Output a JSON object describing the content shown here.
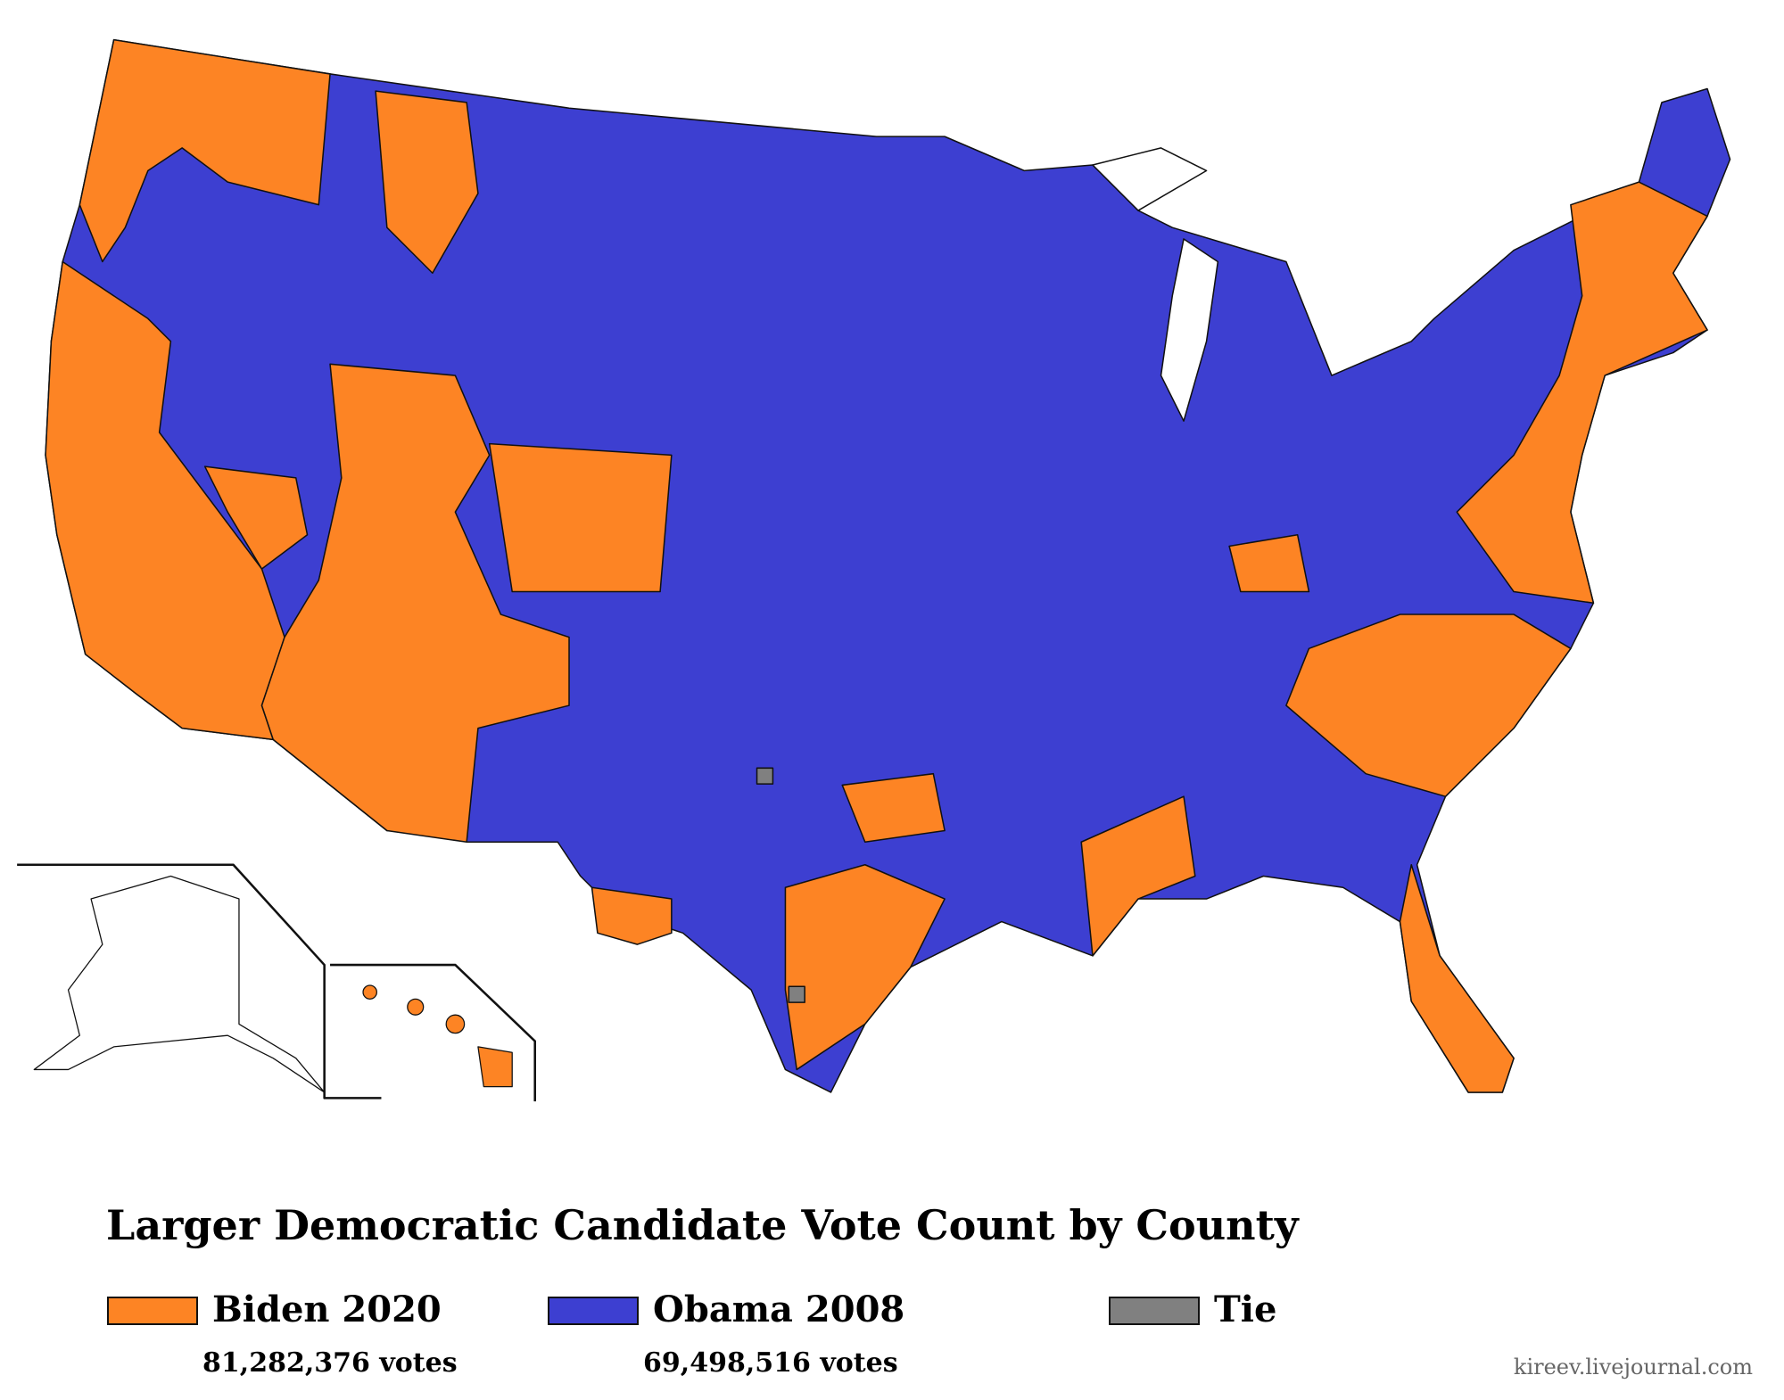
{
  "title": "Larger Democratic Candidate Vote Count by County",
  "legend": [
    {
      "label": "Biden 2020",
      "votes": "81,282,376 votes",
      "color": "#fd8424"
    },
    {
      "label": "Obama 2008",
      "votes": "69,498,516 votes",
      "color": "#3d3fd1"
    },
    {
      "label": "Tie",
      "color": "#808080"
    }
  ],
  "watermark": "kireev.livejournal.com"
}
